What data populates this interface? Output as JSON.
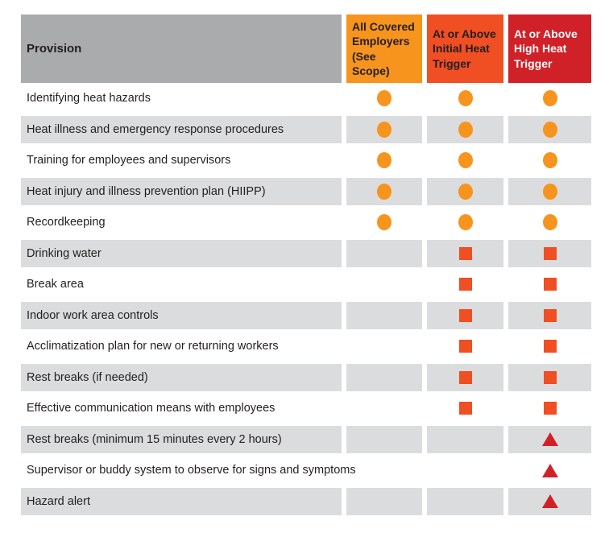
{
  "table": {
    "header": {
      "provision_label": "Provision",
      "provision_bg": "#A9ABAD",
      "columns": [
        {
          "label": "All Covered Employers (See Scope)",
          "bg": "#F7941E",
          "text_color": "#231F20"
        },
        {
          "label": "At or Above Initial Heat Trigger",
          "bg": "#F04E23",
          "text_color": "#231F20"
        },
        {
          "label": "At or Above High Heat Trigger",
          "bg": "#D12128",
          "text_color": "#FFFFFF"
        }
      ]
    },
    "markers": {
      "circle": {
        "shape": "circle",
        "color": "#F7941E"
      },
      "square": {
        "shape": "square",
        "color": "#F04E23"
      },
      "triangle": {
        "shape": "triangle",
        "color": "#D12128"
      }
    },
    "row_alt_bg": "#DBDCDD",
    "text_color": "#231F20",
    "rows": [
      {
        "provision": "Identifying heat hazards",
        "cells": [
          "circle",
          "circle",
          "circle"
        ]
      },
      {
        "provision": "Heat illness and emergency response procedures",
        "cells": [
          "circle",
          "circle",
          "circle"
        ]
      },
      {
        "provision": "Training for employees and supervisors",
        "cells": [
          "circle",
          "circle",
          "circle"
        ]
      },
      {
        "provision": "Heat injury and illness prevention plan (HIIPP)",
        "cells": [
          "circle",
          "circle",
          "circle"
        ]
      },
      {
        "provision": "Recordkeeping",
        "cells": [
          "circle",
          "circle",
          "circle"
        ]
      },
      {
        "provision": "Drinking water",
        "cells": [
          "",
          "square",
          "square"
        ]
      },
      {
        "provision": "Break area",
        "cells": [
          "",
          "square",
          "square"
        ]
      },
      {
        "provision": "Indoor work area controls",
        "cells": [
          "",
          "square",
          "square"
        ]
      },
      {
        "provision": "Acclimatization plan for new or returning workers",
        "cells": [
          "",
          "square",
          "square"
        ]
      },
      {
        "provision": "Rest breaks (if needed)",
        "cells": [
          "",
          "square",
          "square"
        ]
      },
      {
        "provision": "Effective communication means with employees",
        "cells": [
          "",
          "square",
          "square"
        ]
      },
      {
        "provision": "Rest breaks (minimum 15 minutes every 2 hours)",
        "cells": [
          "",
          "",
          "triangle"
        ]
      },
      {
        "provision": "Supervisor or buddy system to observe for signs and symptoms",
        "cells": [
          "",
          "",
          "triangle"
        ]
      },
      {
        "provision": "Hazard alert",
        "cells": [
          "",
          "",
          "triangle"
        ]
      }
    ]
  },
  "chart_data": {
    "type": "table",
    "columns": [
      "Provision",
      "All Covered Employers (See Scope)",
      "At or Above Initial Heat Trigger",
      "At or Above High Heat Trigger"
    ],
    "marker_types": {
      "circle": "#F7941E",
      "square": "#F04E23",
      "triangle": "#D12128"
    },
    "rows": [
      [
        "Identifying heat hazards",
        "circle",
        "circle",
        "circle"
      ],
      [
        "Heat illness and emergency response procedures",
        "circle",
        "circle",
        "circle"
      ],
      [
        "Training for employees and supervisors",
        "circle",
        "circle",
        "circle"
      ],
      [
        "Heat injury and illness prevention plan (HIIPP)",
        "circle",
        "circle",
        "circle"
      ],
      [
        "Recordkeeping",
        "circle",
        "circle",
        "circle"
      ],
      [
        "Drinking water",
        "",
        "square",
        "square"
      ],
      [
        "Break area",
        "",
        "square",
        "square"
      ],
      [
        "Indoor work area controls",
        "",
        "square",
        "square"
      ],
      [
        "Acclimatization plan for new or returning workers",
        "",
        "square",
        "square"
      ],
      [
        "Rest breaks (if needed)",
        "",
        "square",
        "square"
      ],
      [
        "Effective communication means with employees",
        "",
        "square",
        "square"
      ],
      [
        "Rest breaks (minimum 15 minutes every 2 hours)",
        "",
        "",
        "triangle"
      ],
      [
        "Supervisor or buddy system to observe for signs and symptoms",
        "",
        "",
        "triangle"
      ],
      [
        "Hazard alert",
        "",
        "",
        "triangle"
      ]
    ]
  }
}
